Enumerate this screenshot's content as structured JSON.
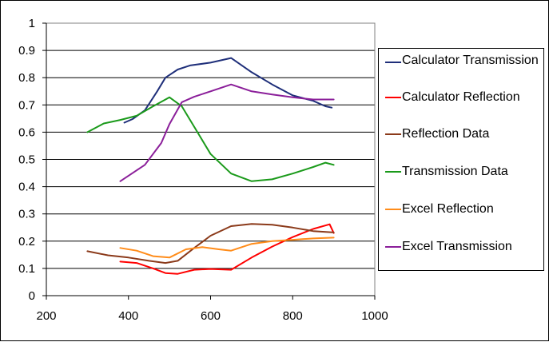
{
  "chart_data": {
    "type": "line",
    "title": "",
    "xlabel": "",
    "ylabel": "",
    "xlim": [
      200,
      1000
    ],
    "ylim": [
      0,
      1
    ],
    "x_ticks": [
      "200",
      "400",
      "600",
      "800",
      "1000"
    ],
    "y_ticks": [
      "0",
      "0.1",
      "0.2",
      "0.3",
      "0.4",
      "0.5",
      "0.6",
      "0.7",
      "0.8",
      "0.9",
      "1"
    ],
    "grid": "horizontal",
    "legend_position": "right",
    "series": [
      {
        "name": "Calculator Transmission",
        "color": "#1f2f7a",
        "points": [
          [
            390,
            0.635
          ],
          [
            410,
            0.648
          ],
          [
            440,
            0.68
          ],
          [
            470,
            0.75
          ],
          [
            490,
            0.8
          ],
          [
            520,
            0.83
          ],
          [
            550,
            0.845
          ],
          [
            600,
            0.855
          ],
          [
            650,
            0.872
          ],
          [
            700,
            0.82
          ],
          [
            750,
            0.775
          ],
          [
            800,
            0.735
          ],
          [
            850,
            0.715
          ],
          [
            880,
            0.695
          ],
          [
            895,
            0.69
          ]
        ]
      },
      {
        "name": "Calculator Reflection",
        "color": "#ff0000",
        "points": [
          [
            380,
            0.125
          ],
          [
            420,
            0.12
          ],
          [
            460,
            0.1
          ],
          [
            490,
            0.083
          ],
          [
            520,
            0.08
          ],
          [
            560,
            0.095
          ],
          [
            600,
            0.098
          ],
          [
            650,
            0.095
          ],
          [
            700,
            0.14
          ],
          [
            750,
            0.18
          ],
          [
            800,
            0.215
          ],
          [
            850,
            0.245
          ],
          [
            890,
            0.262
          ],
          [
            900,
            0.23
          ]
        ]
      },
      {
        "name": "Reflection Data",
        "color": "#8b3a1a",
        "points": [
          [
            300,
            0.163
          ],
          [
            350,
            0.148
          ],
          [
            400,
            0.14
          ],
          [
            450,
            0.128
          ],
          [
            490,
            0.12
          ],
          [
            520,
            0.128
          ],
          [
            560,
            0.175
          ],
          [
            600,
            0.22
          ],
          [
            650,
            0.255
          ],
          [
            700,
            0.263
          ],
          [
            750,
            0.26
          ],
          [
            800,
            0.25
          ],
          [
            850,
            0.237
          ],
          [
            900,
            0.232
          ]
        ]
      },
      {
        "name": "Transmission Data",
        "color": "#1a9a1a",
        "points": [
          [
            300,
            0.6
          ],
          [
            340,
            0.632
          ],
          [
            380,
            0.645
          ],
          [
            420,
            0.66
          ],
          [
            460,
            0.695
          ],
          [
            500,
            0.728
          ],
          [
            530,
            0.695
          ],
          [
            560,
            0.62
          ],
          [
            600,
            0.52
          ],
          [
            650,
            0.448
          ],
          [
            700,
            0.42
          ],
          [
            750,
            0.427
          ],
          [
            800,
            0.448
          ],
          [
            850,
            0.472
          ],
          [
            880,
            0.488
          ],
          [
            900,
            0.48
          ]
        ]
      },
      {
        "name": "Excel Reflection",
        "color": "#ff8c1a",
        "points": [
          [
            380,
            0.175
          ],
          [
            420,
            0.165
          ],
          [
            460,
            0.145
          ],
          [
            500,
            0.14
          ],
          [
            540,
            0.17
          ],
          [
            580,
            0.178
          ],
          [
            620,
            0.17
          ],
          [
            650,
            0.165
          ],
          [
            700,
            0.19
          ],
          [
            750,
            0.2
          ],
          [
            800,
            0.205
          ],
          [
            850,
            0.21
          ],
          [
            900,
            0.213
          ]
        ]
      },
      {
        "name": "Excel Transmission",
        "color": "#8b1f9a",
        "points": [
          [
            380,
            0.42
          ],
          [
            440,
            0.48
          ],
          [
            480,
            0.56
          ],
          [
            500,
            0.63
          ],
          [
            530,
            0.71
          ],
          [
            560,
            0.73
          ],
          [
            600,
            0.75
          ],
          [
            650,
            0.775
          ],
          [
            700,
            0.75
          ],
          [
            750,
            0.738
          ],
          [
            800,
            0.728
          ],
          [
            850,
            0.72
          ],
          [
            900,
            0.72
          ]
        ]
      }
    ]
  }
}
